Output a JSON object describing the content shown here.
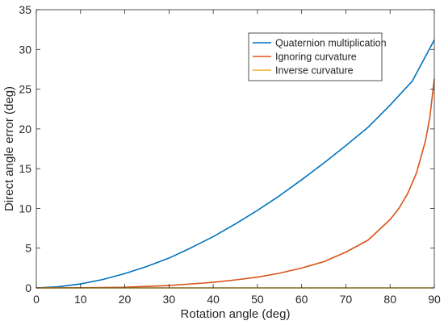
{
  "chart_data": {
    "type": "line",
    "title": "",
    "xlabel": "Rotation angle (deg)",
    "ylabel": "Direct angle error (deg)",
    "xlim": [
      0,
      90
    ],
    "ylim": [
      0,
      35
    ],
    "xticks": [
      "0",
      "10",
      "20",
      "30",
      "40",
      "50",
      "60",
      "70",
      "80",
      "90"
    ],
    "yticks": [
      "0",
      "5",
      "10",
      "15",
      "20",
      "25",
      "30",
      "35"
    ],
    "grid": false,
    "legend_position": "top-right",
    "series": [
      {
        "name": "Quaternion multiplication",
        "color": "#0072BD",
        "x": [
          0,
          5,
          10,
          15,
          20,
          25,
          30,
          35,
          40,
          45,
          50,
          55,
          60,
          65,
          70,
          75,
          80,
          85,
          90
        ],
        "y": [
          0,
          0.15,
          0.5,
          1.05,
          1.8,
          2.7,
          3.75,
          5.05,
          6.45,
          8.05,
          9.75,
          11.6,
          13.6,
          15.7,
          17.9,
          20.2,
          23.0,
          26.0,
          31.2
        ]
      },
      {
        "name": "Ignoring curvature",
        "color": "#D95319",
        "x": [
          0,
          10,
          20,
          30,
          40,
          45,
          50,
          55,
          60,
          65,
          70,
          75,
          80,
          82,
          84,
          86,
          88,
          89,
          90
        ],
        "y": [
          0,
          0.02,
          0.08,
          0.3,
          0.7,
          1.0,
          1.35,
          1.85,
          2.5,
          3.3,
          4.5,
          6.0,
          8.6,
          10.0,
          11.9,
          14.5,
          18.5,
          21.5,
          26.3
        ]
      },
      {
        "name": "Inverse curvature",
        "color": "#EDB120",
        "x": [
          0,
          90
        ],
        "y": [
          0,
          0
        ]
      }
    ]
  }
}
